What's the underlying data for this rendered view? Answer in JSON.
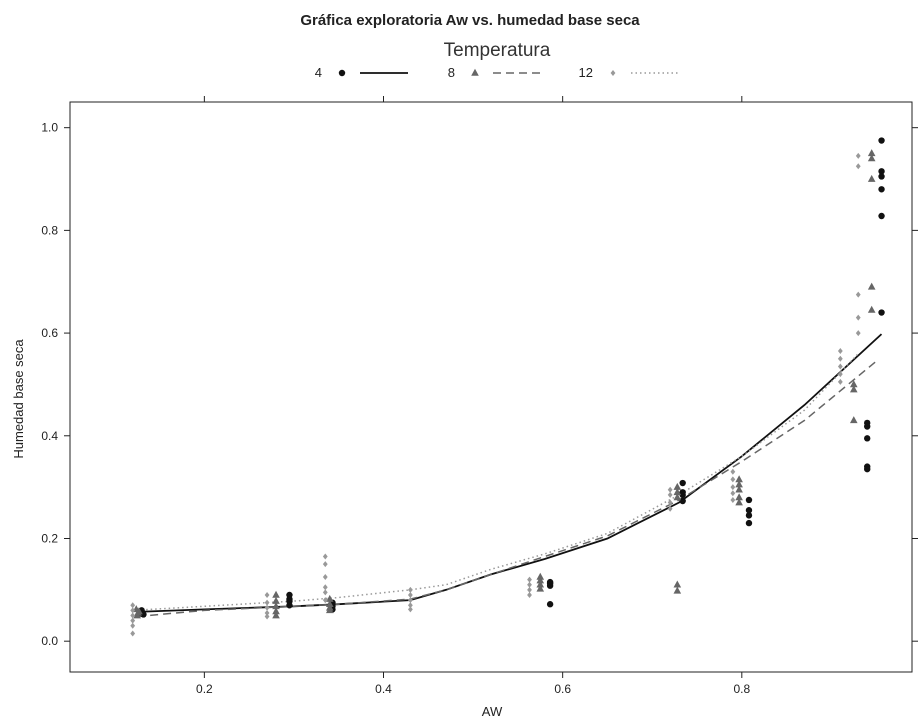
{
  "chart_data": {
    "type": "scatter",
    "title": "Gráfica exploratoria Aw vs. humedad base seca",
    "xlabel": "AW",
    "ylabel": "Humedad base seca",
    "xlim": [
      0.05,
      0.99
    ],
    "ylim": [
      -0.06,
      1.05
    ],
    "x_ticks": [
      0.2,
      0.4,
      0.6,
      0.8
    ],
    "x_tick_labels": [
      "0.2",
      "0.4",
      "0.6",
      "0.8"
    ],
    "y_ticks": [
      0.0,
      0.2,
      0.4,
      0.6,
      0.8,
      1.0
    ],
    "y_tick_labels": [
      "0.0",
      "0.2",
      "0.4",
      "0.6",
      "0.8",
      "1.0"
    ],
    "grid": false,
    "legend": {
      "title": "Temperatura",
      "placement": "top-center"
    },
    "series": [
      {
        "name": "4",
        "color": "#111111",
        "marker": "circle",
        "line_style": "solid",
        "points": [
          [
            0.128,
            0.055
          ],
          [
            0.13,
            0.058
          ],
          [
            0.132,
            0.052
          ],
          [
            0.13,
            0.06
          ],
          [
            0.295,
            0.09
          ],
          [
            0.295,
            0.078
          ],
          [
            0.295,
            0.07
          ],
          [
            0.295,
            0.082
          ],
          [
            0.343,
            0.075
          ],
          [
            0.343,
            0.068
          ],
          [
            0.343,
            0.062
          ],
          [
            0.343,
            0.072
          ],
          [
            0.586,
            0.115
          ],
          [
            0.586,
            0.108
          ],
          [
            0.586,
            0.112
          ],
          [
            0.586,
            0.072
          ],
          [
            0.734,
            0.308
          ],
          [
            0.734,
            0.29
          ],
          [
            0.734,
            0.285
          ],
          [
            0.734,
            0.273
          ],
          [
            0.808,
            0.275
          ],
          [
            0.808,
            0.255
          ],
          [
            0.808,
            0.245
          ],
          [
            0.808,
            0.23
          ],
          [
            0.94,
            0.425
          ],
          [
            0.94,
            0.418
          ],
          [
            0.94,
            0.395
          ],
          [
            0.94,
            0.34
          ],
          [
            0.94,
            0.335
          ],
          [
            0.956,
            0.975
          ],
          [
            0.956,
            0.915
          ],
          [
            0.956,
            0.905
          ],
          [
            0.956,
            0.88
          ],
          [
            0.956,
            0.828
          ],
          [
            0.956,
            0.64
          ]
        ],
        "fit": [
          [
            0.125,
            0.057
          ],
          [
            0.2,
            0.062
          ],
          [
            0.3,
            0.068
          ],
          [
            0.35,
            0.072
          ],
          [
            0.43,
            0.08
          ],
          [
            0.47,
            0.1
          ],
          [
            0.52,
            0.13
          ],
          [
            0.58,
            0.16
          ],
          [
            0.65,
            0.2
          ],
          [
            0.73,
            0.27
          ],
          [
            0.8,
            0.36
          ],
          [
            0.87,
            0.46
          ],
          [
            0.956,
            0.598
          ]
        ]
      },
      {
        "name": "8",
        "color": "#666666",
        "marker": "triangle",
        "line_style": "dashed",
        "points": [
          [
            0.124,
            0.062
          ],
          [
            0.126,
            0.055
          ],
          [
            0.125,
            0.05
          ],
          [
            0.127,
            0.058
          ],
          [
            0.28,
            0.09
          ],
          [
            0.28,
            0.078
          ],
          [
            0.28,
            0.068
          ],
          [
            0.28,
            0.058
          ],
          [
            0.28,
            0.05
          ],
          [
            0.34,
            0.082
          ],
          [
            0.34,
            0.072
          ],
          [
            0.34,
            0.065
          ],
          [
            0.34,
            0.06
          ],
          [
            0.575,
            0.125
          ],
          [
            0.575,
            0.118
          ],
          [
            0.575,
            0.11
          ],
          [
            0.575,
            0.102
          ],
          [
            0.728,
            0.3
          ],
          [
            0.728,
            0.29
          ],
          [
            0.728,
            0.28
          ],
          [
            0.728,
            0.11
          ],
          [
            0.728,
            0.098
          ],
          [
            0.797,
            0.315
          ],
          [
            0.797,
            0.305
          ],
          [
            0.797,
            0.295
          ],
          [
            0.797,
            0.28
          ],
          [
            0.797,
            0.27
          ],
          [
            0.925,
            0.5
          ],
          [
            0.925,
            0.49
          ],
          [
            0.925,
            0.43
          ],
          [
            0.945,
            0.95
          ],
          [
            0.945,
            0.94
          ],
          [
            0.945,
            0.9
          ],
          [
            0.945,
            0.69
          ],
          [
            0.945,
            0.645
          ]
        ],
        "fit": [
          [
            0.125,
            0.048
          ],
          [
            0.2,
            0.06
          ],
          [
            0.3,
            0.068
          ],
          [
            0.35,
            0.072
          ],
          [
            0.43,
            0.082
          ],
          [
            0.47,
            0.1
          ],
          [
            0.52,
            0.13
          ],
          [
            0.58,
            0.165
          ],
          [
            0.65,
            0.205
          ],
          [
            0.73,
            0.275
          ],
          [
            0.8,
            0.35
          ],
          [
            0.87,
            0.43
          ],
          [
            0.95,
            0.545
          ]
        ]
      },
      {
        "name": "12",
        "color": "#999999",
        "marker": "diamond",
        "line_style": "dotted",
        "points": [
          [
            0.12,
            0.07
          ],
          [
            0.12,
            0.06
          ],
          [
            0.12,
            0.05
          ],
          [
            0.12,
            0.04
          ],
          [
            0.12,
            0.03
          ],
          [
            0.12,
            0.015
          ],
          [
            0.27,
            0.09
          ],
          [
            0.27,
            0.075
          ],
          [
            0.27,
            0.065
          ],
          [
            0.27,
            0.055
          ],
          [
            0.27,
            0.048
          ],
          [
            0.335,
            0.165
          ],
          [
            0.335,
            0.15
          ],
          [
            0.335,
            0.125
          ],
          [
            0.335,
            0.105
          ],
          [
            0.335,
            0.095
          ],
          [
            0.335,
            0.08
          ],
          [
            0.43,
            0.1
          ],
          [
            0.43,
            0.09
          ],
          [
            0.43,
            0.08
          ],
          [
            0.43,
            0.07
          ],
          [
            0.43,
            0.062
          ],
          [
            0.563,
            0.12
          ],
          [
            0.563,
            0.11
          ],
          [
            0.563,
            0.1
          ],
          [
            0.563,
            0.09
          ],
          [
            0.72,
            0.295
          ],
          [
            0.72,
            0.285
          ],
          [
            0.72,
            0.27
          ],
          [
            0.72,
            0.258
          ],
          [
            0.79,
            0.33
          ],
          [
            0.79,
            0.315
          ],
          [
            0.79,
            0.3
          ],
          [
            0.79,
            0.288
          ],
          [
            0.79,
            0.275
          ],
          [
            0.91,
            0.565
          ],
          [
            0.91,
            0.55
          ],
          [
            0.91,
            0.535
          ],
          [
            0.91,
            0.52
          ],
          [
            0.91,
            0.505
          ],
          [
            0.93,
            0.945
          ],
          [
            0.93,
            0.925
          ],
          [
            0.93,
            0.675
          ],
          [
            0.93,
            0.63
          ],
          [
            0.93,
            0.6
          ]
        ],
        "fit": [
          [
            0.12,
            0.06
          ],
          [
            0.2,
            0.068
          ],
          [
            0.3,
            0.078
          ],
          [
            0.35,
            0.085
          ],
          [
            0.43,
            0.1
          ],
          [
            0.47,
            0.11
          ],
          [
            0.52,
            0.14
          ],
          [
            0.58,
            0.17
          ],
          [
            0.65,
            0.21
          ],
          [
            0.73,
            0.285
          ],
          [
            0.8,
            0.36
          ],
          [
            0.87,
            0.45
          ],
          [
            0.93,
            0.56
          ]
        ]
      }
    ]
  }
}
